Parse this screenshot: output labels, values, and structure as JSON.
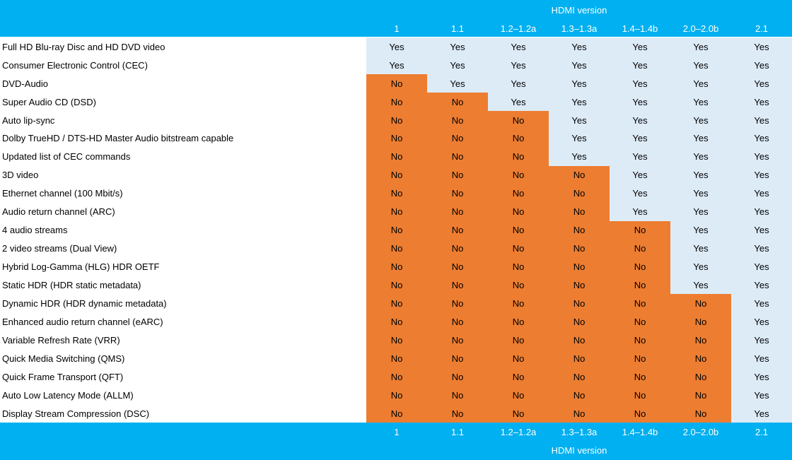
{
  "header": {
    "title": "HDMI version",
    "versions": [
      "1",
      "1.1",
      "1.2–1.2a",
      "1.3–1.3a",
      "1.4–1.4b",
      "2.0–2.0b",
      "2.1"
    ]
  },
  "table": {
    "rows": [
      {
        "label": "Full HD Blu-ray Disc and HD DVD video",
        "cells": [
          "Yes",
          "Yes",
          "Yes",
          "Yes",
          "Yes",
          "Yes",
          "Yes"
        ]
      },
      {
        "label": "Consumer Electronic Control (CEC)",
        "cells": [
          "Yes",
          "Yes",
          "Yes",
          "Yes",
          "Yes",
          "Yes",
          "Yes"
        ]
      },
      {
        "label": "DVD-Audio",
        "cells": [
          "No",
          "Yes",
          "Yes",
          "Yes",
          "Yes",
          "Yes",
          "Yes"
        ]
      },
      {
        "label": "Super Audio CD (DSD)",
        "cells": [
          "No",
          "No",
          "Yes",
          "Yes",
          "Yes",
          "Yes",
          "Yes"
        ]
      },
      {
        "label": "Auto lip-sync",
        "cells": [
          "No",
          "No",
          "No",
          "Yes",
          "Yes",
          "Yes",
          "Yes"
        ]
      },
      {
        "label": "Dolby TrueHD / DTS-HD Master Audio bitstream capable",
        "cells": [
          "No",
          "No",
          "No",
          "Yes",
          "Yes",
          "Yes",
          "Yes"
        ]
      },
      {
        "label": "Updated list of CEC commands",
        "cells": [
          "No",
          "No",
          "No",
          "Yes",
          "Yes",
          "Yes",
          "Yes"
        ]
      },
      {
        "label": "3D video",
        "cells": [
          "No",
          "No",
          "No",
          "No",
          "Yes",
          "Yes",
          "Yes"
        ]
      },
      {
        "label": "Ethernet channel (100 Mbit/s)",
        "cells": [
          "No",
          "No",
          "No",
          "No",
          "Yes",
          "Yes",
          "Yes"
        ]
      },
      {
        "label": "Audio return channel (ARC)",
        "cells": [
          "No",
          "No",
          "No",
          "No",
          "Yes",
          "Yes",
          "Yes"
        ]
      },
      {
        "label": "4 audio streams",
        "cells": [
          "No",
          "No",
          "No",
          "No",
          "No",
          "Yes",
          "Yes"
        ]
      },
      {
        "label": "2 video streams (Dual View)",
        "cells": [
          "No",
          "No",
          "No",
          "No",
          "No",
          "Yes",
          "Yes"
        ]
      },
      {
        "label": "Hybrid Log-Gamma (HLG) HDR OETF",
        "cells": [
          "No",
          "No",
          "No",
          "No",
          "No",
          "Yes",
          "Yes"
        ]
      },
      {
        "label": "Static HDR (HDR static metadata)",
        "cells": [
          "No",
          "No",
          "No",
          "No",
          "No",
          "Yes",
          "Yes"
        ]
      },
      {
        "label": "Dynamic HDR (HDR dynamic metadata)",
        "cells": [
          "No",
          "No",
          "No",
          "No",
          "No",
          "No",
          "Yes"
        ]
      },
      {
        "label": "Enhanced audio return channel (eARC)",
        "cells": [
          "No",
          "No",
          "No",
          "No",
          "No",
          "No",
          "Yes"
        ]
      },
      {
        "label": "Variable Refresh Rate (VRR)",
        "cells": [
          "No",
          "No",
          "No",
          "No",
          "No",
          "No",
          "Yes"
        ]
      },
      {
        "label": "Quick Media Switching (QMS)",
        "cells": [
          "No",
          "No",
          "No",
          "No",
          "No",
          "No",
          "Yes"
        ]
      },
      {
        "label": "Quick Frame Transport (QFT)",
        "cells": [
          "No",
          "No",
          "No",
          "No",
          "No",
          "No",
          "Yes"
        ]
      },
      {
        "label": "Auto Low Latency Mode (ALLM)",
        "cells": [
          "No",
          "No",
          "No",
          "No",
          "No",
          "No",
          "Yes"
        ]
      },
      {
        "label": "Display Stream Compression (DSC)",
        "cells": [
          "No",
          "No",
          "No",
          "No",
          "No",
          "No",
          "Yes"
        ]
      }
    ]
  },
  "footer": {
    "versions": [
      "1",
      "1.1",
      "1.2–1.2a",
      "1.3–1.3a",
      "1.4–1.4b",
      "2.0–2.0b",
      "2.1"
    ],
    "title": "HDMI version"
  }
}
